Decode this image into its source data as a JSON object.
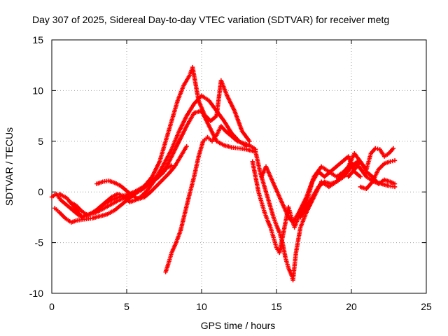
{
  "chart_data": {
    "type": "scatter",
    "title": "Day 307 of 2025, Sidereal Day-to-day VTEC variation (SDTVAR) for receiver metg",
    "xlabel": "GPS time / hours",
    "ylabel": "SDTVAR / TECUs",
    "xlim": [
      0,
      25
    ],
    "ylim": [
      -10,
      15
    ],
    "xticks": [
      "0",
      "5",
      "10",
      "15",
      "20",
      "25"
    ],
    "yticks": [
      "-10",
      "-5",
      "0",
      "5",
      "10",
      "15"
    ],
    "grid": true,
    "marker": "+",
    "series_color": "#ff0000",
    "series": [
      {
        "x": [
          0.0,
          0.3,
          0.6,
          1.0,
          1.4,
          1.8,
          2.1,
          2.5,
          3.0,
          3.5,
          4.0,
          4.5,
          5.0,
          5.5,
          6.0,
          6.5,
          7.0,
          7.5,
          8.0,
          8.5,
          9.0,
          9.5,
          10.0,
          10.5,
          11.0,
          11.5,
          12.0,
          12.5,
          13.0
        ],
        "y": [
          -0.5,
          -0.2,
          -0.8,
          -1.3,
          -1.8,
          -2.3,
          -2.4,
          -2.2,
          -2.0,
          -1.6,
          -1.2,
          -0.8,
          -0.5,
          -0.2,
          0.2,
          0.8,
          1.5,
          2.8,
          4.2,
          6.0,
          7.5,
          8.7,
          9.5,
          9.0,
          8.0,
          7.0,
          5.8,
          5.0,
          4.5
        ]
      },
      {
        "x": [
          0.2,
          0.5,
          0.9,
          1.3,
          1.7,
          2.2,
          2.7,
          3.2,
          3.7,
          4.2,
          4.7,
          5.2,
          5.7,
          6.2,
          6.7,
          7.2,
          7.6,
          8.0,
          8.4,
          8.8,
          9.2,
          9.4,
          9.8,
          10.2,
          10.6,
          11.0,
          11.3,
          11.7,
          12.2,
          12.7,
          13.2
        ],
        "y": [
          -1.6,
          -2.0,
          -2.6,
          -3.0,
          -2.8,
          -2.7,
          -2.6,
          -2.4,
          -2.2,
          -1.8,
          -1.2,
          -0.6,
          0.0,
          0.6,
          1.5,
          3.0,
          5.0,
          7.0,
          9.0,
          10.5,
          11.5,
          12.3,
          9.0,
          7.6,
          7.0,
          7.5,
          11.0,
          9.5,
          8.0,
          6.0,
          5.0
        ]
      },
      {
        "x": [
          0.5,
          1.0,
          1.5,
          2.0,
          2.5,
          3.0,
          3.5,
          4.0,
          4.5,
          5.0,
          5.5,
          6.0,
          6.5,
          7.0,
          7.5,
          8.0,
          8.5,
          9.0,
          9.5,
          10.0,
          10.5,
          11.0,
          11.5,
          12.0,
          12.5,
          13.0,
          13.5
        ],
        "y": [
          -0.2,
          -0.6,
          -1.5,
          -2.5,
          -2.2,
          -1.8,
          -1.2,
          -0.8,
          -0.5,
          -0.3,
          0.0,
          0.4,
          0.9,
          1.3,
          2.0,
          3.5,
          5.0,
          6.5,
          7.8,
          8.0,
          6.5,
          5.0,
          4.6,
          4.4,
          4.3,
          4.2,
          4.0
        ]
      },
      {
        "x": [
          1.2,
          1.6,
          2.0,
          2.4,
          2.8,
          3.2,
          3.6,
          4.0,
          4.4,
          4.8,
          5.2,
          5.6,
          6.0,
          6.4,
          6.8,
          7.2,
          7.6,
          8.0
        ],
        "y": [
          -1.0,
          -1.3,
          -1.9,
          -2.3,
          -2.0,
          -1.5,
          -1.0,
          -0.5,
          -0.2,
          -0.4,
          -1.0,
          -0.8,
          -0.4,
          0.2,
          1.0,
          1.8,
          2.3,
          2.6
        ]
      },
      {
        "x": [
          3.0,
          3.4,
          3.8,
          4.2,
          4.6,
          5.0,
          5.4,
          5.8,
          6.2,
          6.6,
          7.0,
          7.4,
          7.8,
          8.2,
          8.6,
          9.0
        ],
        "y": [
          0.8,
          1.0,
          1.1,
          0.9,
          0.6,
          0.1,
          -0.4,
          -0.7,
          -0.5,
          0.0,
          0.6,
          1.2,
          1.8,
          2.5,
          3.5,
          4.5
        ]
      },
      {
        "x": [
          7.6,
          7.8,
          8.0,
          8.3,
          8.6,
          8.9,
          9.2,
          9.5,
          9.8,
          10.1,
          10.4,
          10.7,
          11.0,
          11.3,
          11.6,
          12.0,
          12.4,
          12.8,
          13.2,
          13.6
        ],
        "y": [
          -7.9,
          -7.0,
          -6.0,
          -5.0,
          -3.8,
          -2.0,
          -0.2,
          1.5,
          3.5,
          5.0,
          5.4,
          5.0,
          5.6,
          6.5,
          6.0,
          5.5,
          5.0,
          4.8,
          4.6,
          4.2
        ]
      },
      {
        "x": [
          13.4,
          13.6,
          13.8,
          14.0,
          14.2,
          14.4,
          14.6,
          14.8,
          15.0,
          15.2,
          15.4,
          15.6,
          15.8,
          16.0,
          16.2,
          16.6,
          17.0,
          17.4,
          17.8,
          18.2,
          18.6,
          19.0,
          19.4,
          19.8,
          20.2,
          20.6
        ],
        "y": [
          3.0,
          1.5,
          0.0,
          -1.0,
          -2.0,
          -2.8,
          -3.5,
          -4.5,
          -5.5,
          -6.0,
          -4.5,
          -3.0,
          -1.5,
          -2.5,
          -3.5,
          -2.0,
          -1.0,
          1.0,
          2.0,
          1.5,
          2.0,
          2.5,
          3.0,
          3.5,
          2.0,
          1.5
        ]
      },
      {
        "x": [
          13.6,
          13.9,
          14.2,
          14.5,
          14.8,
          15.0,
          15.2,
          15.4,
          15.6,
          15.8,
          16.0,
          16.1,
          16.3,
          16.6,
          17.0,
          17.5,
          18.0,
          18.5,
          19.0,
          19.5,
          20.0,
          20.4
        ],
        "y": [
          4.0,
          2.0,
          0.5,
          -1.0,
          -2.5,
          -3.3,
          -4.0,
          -5.0,
          -6.5,
          -7.5,
          -8.2,
          -8.7,
          -6.0,
          -3.5,
          -2.0,
          -0.5,
          1.0,
          0.5,
          1.0,
          1.5,
          2.5,
          3.0
        ]
      },
      {
        "x": [
          14.0,
          14.3,
          14.6,
          14.9,
          15.2,
          15.5,
          15.8,
          16.1,
          16.5,
          17.0,
          17.5,
          18.0,
          18.5,
          19.0,
          19.5,
          20.0,
          20.5,
          21.0,
          21.5,
          22.0,
          22.5,
          22.9
        ],
        "y": [
          1.5,
          2.5,
          1.5,
          0.5,
          -0.5,
          -1.5,
          -2.5,
          -3.0,
          -2.0,
          -0.5,
          1.5,
          2.5,
          2.0,
          1.5,
          2.0,
          2.8,
          2.5,
          1.5,
          1.0,
          0.8,
          0.6,
          0.5
        ]
      },
      {
        "x": [
          16.6,
          17.0,
          17.4,
          17.8,
          18.2,
          18.6,
          19.0,
          19.4,
          19.8,
          20.2,
          20.6,
          21.0,
          21.4,
          21.8,
          22.2,
          22.6,
          22.9
        ],
        "y": [
          -2.5,
          -1.5,
          -0.5,
          0.5,
          1.0,
          0.8,
          1.0,
          1.8,
          2.5,
          3.8,
          3.0,
          2.0,
          1.5,
          0.8,
          1.2,
          1.0,
          0.8
        ]
      },
      {
        "x": [
          19.8,
          20.2,
          20.6,
          21.0,
          21.3,
          21.6,
          21.9,
          22.2,
          22.5,
          22.8
        ],
        "y": [
          1.5,
          2.2,
          3.0,
          2.2,
          3.8,
          4.3,
          4.2,
          3.5,
          3.8,
          4.3
        ]
      },
      {
        "x": [
          20.6,
          21.0,
          21.4,
          21.8,
          22.2,
          22.6,
          22.9
        ],
        "y": [
          0.5,
          0.3,
          1.0,
          2.2,
          2.8,
          3.0,
          3.1
        ]
      }
    ]
  }
}
